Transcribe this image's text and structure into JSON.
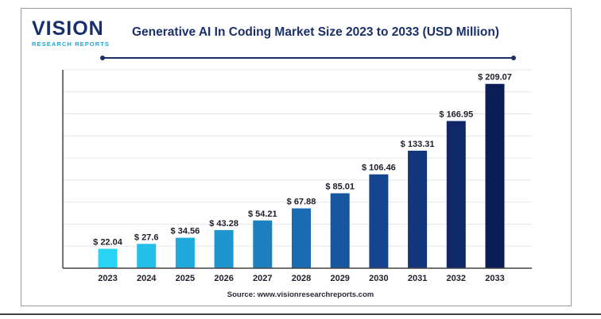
{
  "logo": {
    "main": "VISION",
    "sub": "RESEARCH REPORTS"
  },
  "title": "Generative AI In Coding Market Size 2023 to 2033 (USD Million)",
  "source": "Source: www.visionresearchreports.com",
  "chart_data": {
    "type": "bar",
    "title": "Generative AI In Coding Market Size 2023 to 2033 (USD Million)",
    "xlabel": "",
    "ylabel": "",
    "ylim": [
      0,
      225
    ],
    "grid": true,
    "categories": [
      "2023",
      "2024",
      "2025",
      "2026",
      "2027",
      "2028",
      "2029",
      "2030",
      "2031",
      "2032",
      "2033"
    ],
    "values": [
      22.04,
      27.6,
      34.56,
      43.28,
      54.21,
      67.88,
      85.01,
      106.46,
      133.31,
      166.95,
      209.07
    ],
    "value_labels": [
      "$ 22.04",
      "$ 27.6",
      "$ 34.56",
      "$ 43.28",
      "$ 54.21",
      "$ 67.88",
      "$ 85.01",
      "$ 106.46",
      "$ 133.31",
      "$ 166.95",
      "$ 209.07"
    ],
    "colors": [
      "#29d3f3",
      "#23bfe9",
      "#20aadc",
      "#1f95cf",
      "#1d80c0",
      "#1a6bb0",
      "#1857a0",
      "#16448e",
      "#13357c",
      "#102869",
      "#0c1c56"
    ],
    "grid_color": "#e3e5ea",
    "axis_color": "#444444"
  }
}
